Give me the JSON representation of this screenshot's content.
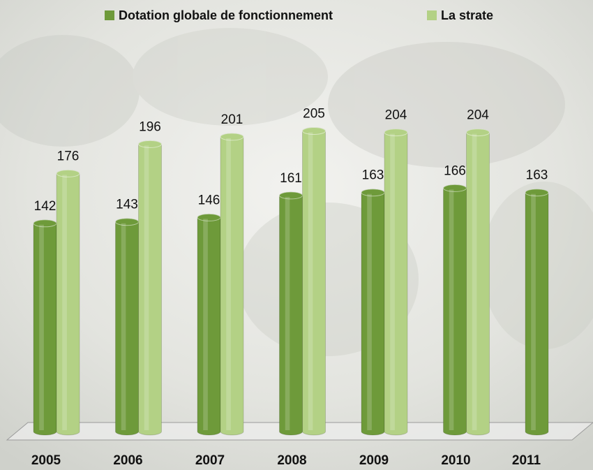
{
  "chart_data": {
    "type": "bar",
    "categories": [
      "2005",
      "2006",
      "2007",
      "2008",
      "2009",
      "2010",
      "2011"
    ],
    "series": [
      {
        "name": "Dotation globale de fonctionnement",
        "color": "#6e9a3a",
        "values": [
          142,
          143,
          146,
          161,
          163,
          166,
          163
        ]
      },
      {
        "name": "La strate",
        "color": "#b3d185",
        "values": [
          176,
          196,
          201,
          205,
          204,
          204,
          null
        ]
      }
    ],
    "legend": "top"
  }
}
